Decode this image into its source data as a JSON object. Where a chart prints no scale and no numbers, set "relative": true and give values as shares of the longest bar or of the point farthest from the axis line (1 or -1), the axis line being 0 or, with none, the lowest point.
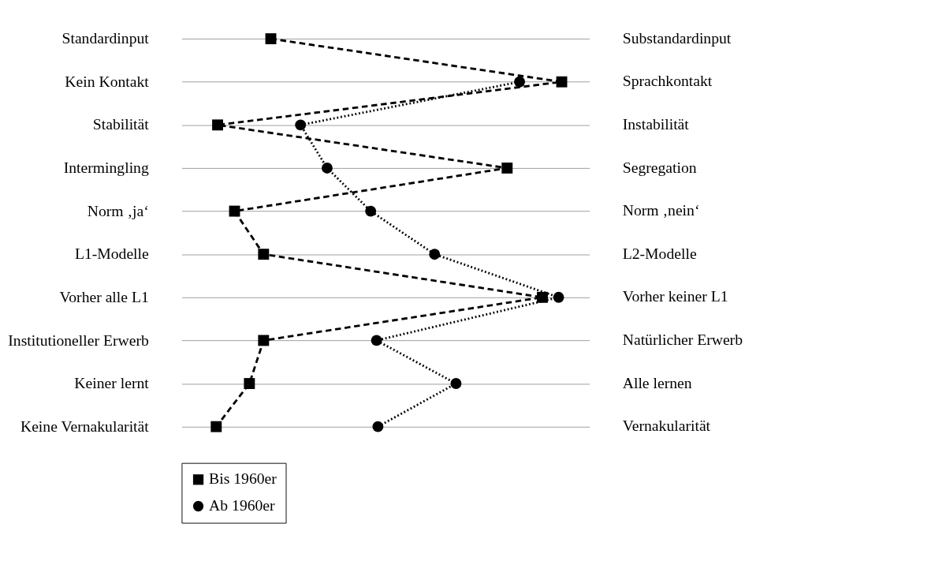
{
  "chart_data": {
    "type": "line",
    "orientation": "horizontal",
    "relative": true,
    "categories": [
      "Standardinput",
      "Kein Kontakt",
      "Stabilität",
      "Intermingling",
      "Norm ‚ja‘",
      "L1-Modelle",
      "Vorher alle L1",
      "Institutioneller Erwerb",
      "Keiner lernt",
      "Keine Vernakularität"
    ],
    "y2_categories": [
      "Substandardinput",
      "Sprachkontakt",
      "Instabilität",
      "Segregation",
      "Norm ‚nein‘",
      "L2-Modelle",
      "Vorher keiner L1",
      "Natürlicher Erwerb",
      "Alle lernen",
      "Vernakularität"
    ],
    "series": [
      {
        "name": "Bis 1960er",
        "color": "#000000",
        "marker": "square",
        "line_style": "dashed",
        "values": [
          0.158,
          1,
          0.004,
          0.842,
          0.053,
          0.137,
          0.944,
          0.137,
          0.096,
          0
        ]
      },
      {
        "name": "Ab 1960er",
        "color": "#000000",
        "marker": "circle",
        "line_style": "dotted",
        "values": [
          null,
          0.878,
          0.244,
          0.321,
          0.447,
          0.632,
          0.991,
          0.464,
          0.694,
          0.468
        ]
      }
    ],
    "grid": "y",
    "legend": "bottom"
  }
}
